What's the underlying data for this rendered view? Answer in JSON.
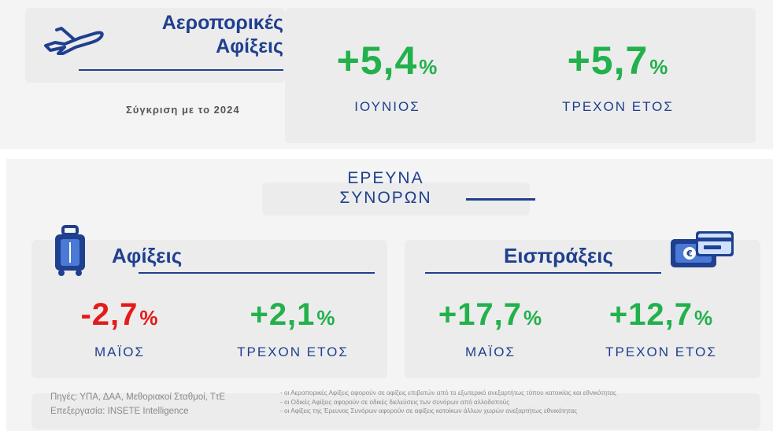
{
  "colors": {
    "blue": "#1f3f8f",
    "green": "#22b14c",
    "red": "#e41b1b",
    "panel": "#ececec"
  },
  "top": {
    "title_line1": "Αεροπορικές",
    "title_line2": "Αφίξεις",
    "comparison": "Σύγκριση με το 2024",
    "icon": "airplane-icon",
    "kpis": [
      {
        "value": "+5,4",
        "unit": "%",
        "label": "ΙΟΥΝΙΟΣ"
      },
      {
        "value": "+5,7",
        "unit": "%",
        "label": "ΤΡΕΧΟΝ ΕΤΟΣ"
      }
    ]
  },
  "survey": {
    "line1": "ΕΡΕΥΝΑ",
    "line2": "ΣΥΝΟΡΩΝ"
  },
  "arrivals": {
    "title": "Αφίξεις",
    "icon": "luggage-icon",
    "kpis": [
      {
        "value": "-2,7",
        "unit": "%",
        "label": "ΜΑΪΟΣ"
      },
      {
        "value": "+2,1",
        "unit": "%",
        "label": "ΤΡΕΧΟΝ ΕΤΟΣ"
      }
    ]
  },
  "receipts": {
    "title": "Εισπράξεις",
    "icon": "credit-card-euro-icon",
    "kpis": [
      {
        "value": "+17,7",
        "unit": "%",
        "label": "ΜΑΪΟΣ"
      },
      {
        "value": "+12,7",
        "unit": "%",
        "label": "ΤΡΕΧΟΝ ΕΤΟΣ"
      }
    ]
  },
  "footer": {
    "sources": "Πηγές: ΥΠΑ, ΔΑΑ, Μεθοριακοί Σταθμοί, ΤτΕ",
    "processing": "Επεξεργασία: INSETE Intelligence",
    "notes": [
      "- οι Αεροπορικές Αφίξεις αφορούν σε αφίξεις επιβατών από το εξωτερικό ανεξαρτήτως τόπου κατοικίας και εθνικότητας",
      "- οι Οδικές Αφίξεις αφορούν σε οδικές διελεύσεις των συνόρων από αλλοδαπούς",
      "- οι Αφίξεις της Έρευνας Συνόρων αφορούν σε αφίξεις κατοίκων άλλων χωρών ανεξαρτήτως εθνικότητας"
    ]
  }
}
